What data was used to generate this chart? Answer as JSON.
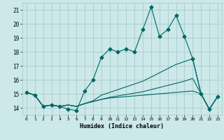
{
  "title": "",
  "xlabel": "Humidex (Indice chaleur)",
  "background_color": "#cce8e8",
  "grid_color": "#aacccc",
  "line_color": "#006666",
  "xlim": [
    -0.5,
    23.5
  ],
  "ylim": [
    13.5,
    21.5
  ],
  "xticks": [
    0,
    1,
    2,
    3,
    4,
    5,
    6,
    7,
    8,
    9,
    10,
    11,
    12,
    13,
    14,
    15,
    16,
    17,
    18,
    19,
    20,
    21,
    22,
    23
  ],
  "yticks": [
    14,
    15,
    16,
    17,
    18,
    19,
    20,
    21
  ],
  "series": [
    [
      15.1,
      14.9,
      14.1,
      14.2,
      14.1,
      13.9,
      13.8,
      15.2,
      16.0,
      17.6,
      18.2,
      18.0,
      18.2,
      18.0,
      19.6,
      21.2,
      19.1,
      19.6,
      20.6,
      19.1,
      17.5,
      15.0,
      13.9,
      14.8
    ],
    [
      15.1,
      14.9,
      14.1,
      14.2,
      14.1,
      14.2,
      14.1,
      14.3,
      14.45,
      14.6,
      14.7,
      14.75,
      14.8,
      14.85,
      14.9,
      14.95,
      15.0,
      15.05,
      15.1,
      15.15,
      15.2,
      15.0,
      13.9,
      14.8
    ],
    [
      15.1,
      14.9,
      14.1,
      14.2,
      14.1,
      14.2,
      14.1,
      14.3,
      14.45,
      14.6,
      14.75,
      14.85,
      14.95,
      15.05,
      15.15,
      15.3,
      15.45,
      15.6,
      15.75,
      15.9,
      16.1,
      15.0,
      13.9,
      14.8
    ],
    [
      15.1,
      14.9,
      14.1,
      14.2,
      14.1,
      14.2,
      14.1,
      14.3,
      14.5,
      14.9,
      15.1,
      15.3,
      15.5,
      15.7,
      15.9,
      16.2,
      16.5,
      16.8,
      17.1,
      17.3,
      17.5,
      15.0,
      13.9,
      14.8
    ]
  ],
  "markers": [
    true,
    false,
    false,
    false
  ],
  "marker_style": "D",
  "marker_size": 2.5,
  "linewidth": 0.8
}
